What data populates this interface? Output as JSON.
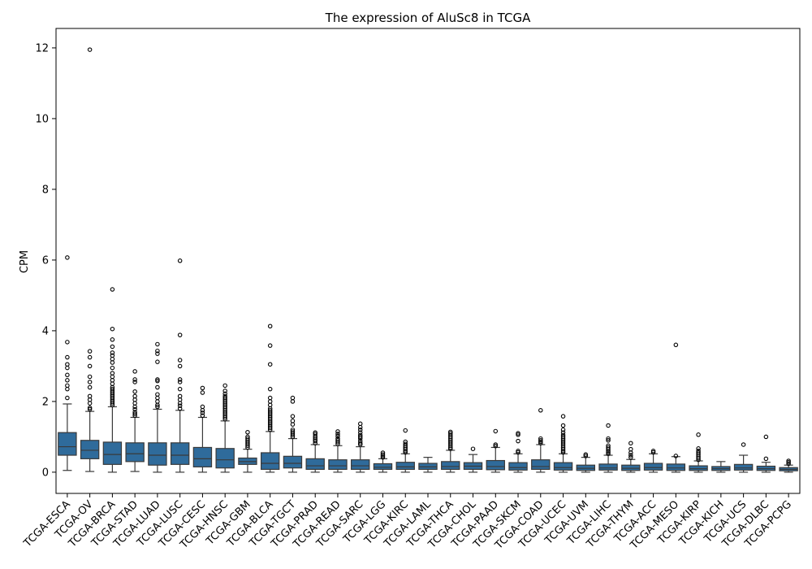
{
  "chart_data": {
    "type": "box",
    "title": "The expression of AluSc8 in TCGA",
    "xlabel": "",
    "ylabel": "CPM",
    "ylim": [
      -0.6,
      12.55
    ],
    "yticks": [
      0,
      2,
      4,
      6,
      8,
      10,
      12
    ],
    "grid": false,
    "legend": "none",
    "box_color": "#2f6b9b",
    "edge_color": "#3a3a3a",
    "categories": [
      "TCGA-ESCA",
      "TCGA-OV",
      "TCGA-BRCA",
      "TCGA-STAD",
      "TCGA-LUAD",
      "TCGA-LUSC",
      "TCGA-CESC",
      "TCGA-HNSC",
      "TCGA-GBM",
      "TCGA-BLCA",
      "TCGA-TGCT",
      "TCGA-PRAD",
      "TCGA-READ",
      "TCGA-SARC",
      "TCGA-LGG",
      "TCGA-KIRC",
      "TCGA-LAML",
      "TCGA-THCA",
      "TCGA-CHOL",
      "TCGA-PAAD",
      "TCGA-SKCM",
      "TCGA-COAD",
      "TCGA-UCEC",
      "TCGA-UVM",
      "TCGA-LIHC",
      "TCGA-THYM",
      "TCGA-ACC",
      "TCGA-MESO",
      "TCGA-KIRP",
      "TCGA-KICH",
      "TCGA-UCS",
      "TCGA-DLBC",
      "TCGA-PCPG"
    ],
    "boxes": [
      {
        "q1": 0.48,
        "median": 0.72,
        "q3": 1.12,
        "whislo": 0.05,
        "whishi": 1.93,
        "fliers": [
          2.1,
          2.35,
          2.45,
          2.6,
          2.75,
          2.95,
          3.05,
          3.25,
          3.68,
          6.07
        ]
      },
      {
        "q1": 0.38,
        "median": 0.62,
        "q3": 0.9,
        "whislo": 0.02,
        "whishi": 1.72,
        "fliers": [
          1.78,
          1.82,
          1.95,
          2.05,
          2.15,
          2.4,
          2.55,
          2.7,
          3.0,
          3.25,
          3.42,
          11.95
        ]
      },
      {
        "q1": 0.22,
        "median": 0.5,
        "q3": 0.85,
        "whislo": 0.0,
        "whishi": 1.85,
        "fliers": [
          1.9,
          1.95,
          2.0,
          2.05,
          2.1,
          2.15,
          2.2,
          2.25,
          2.3,
          2.35,
          2.4,
          2.5,
          2.6,
          2.7,
          2.8,
          2.95,
          3.1,
          3.2,
          3.3,
          3.38,
          3.55,
          3.75,
          4.05,
          5.17
        ]
      },
      {
        "q1": 0.3,
        "median": 0.52,
        "q3": 0.83,
        "whislo": 0.02,
        "whishi": 1.55,
        "fliers": [
          1.6,
          1.65,
          1.7,
          1.78,
          1.85,
          1.95,
          2.05,
          2.15,
          2.28,
          2.55,
          2.62,
          2.85
        ]
      },
      {
        "q1": 0.2,
        "median": 0.48,
        "q3": 0.83,
        "whislo": 0.0,
        "whishi": 1.78,
        "fliers": [
          1.85,
          1.9,
          2.0,
          2.1,
          2.2,
          2.4,
          2.58,
          2.62,
          3.12,
          3.35,
          3.43,
          3.62
        ]
      },
      {
        "q1": 0.22,
        "median": 0.48,
        "q3": 0.83,
        "whislo": 0.0,
        "whishi": 1.75,
        "fliers": [
          1.8,
          1.88,
          1.95,
          2.05,
          2.15,
          2.35,
          2.55,
          2.62,
          3.0,
          3.17,
          3.88,
          5.98
        ]
      },
      {
        "q1": 0.15,
        "median": 0.38,
        "q3": 0.7,
        "whislo": 0.0,
        "whishi": 1.55,
        "fliers": [
          1.6,
          1.68,
          1.75,
          1.85,
          2.25,
          2.38
        ]
      },
      {
        "q1": 0.12,
        "median": 0.35,
        "q3": 0.67,
        "whislo": 0.0,
        "whishi": 1.45,
        "fliers": [
          1.5,
          1.55,
          1.6,
          1.65,
          1.7,
          1.75,
          1.8,
          1.85,
          1.9,
          1.95,
          2.0,
          2.05,
          2.1,
          2.15,
          2.22,
          2.3,
          2.45
        ]
      },
      {
        "q1": 0.22,
        "median": 0.3,
        "q3": 0.4,
        "whislo": 0.0,
        "whishi": 0.65,
        "fliers": [
          0.7,
          0.75,
          0.8,
          0.85,
          0.9,
          0.95,
          1.0,
          1.13
        ]
      },
      {
        "q1": 0.08,
        "median": 0.25,
        "q3": 0.55,
        "whislo": 0.0,
        "whishi": 1.15,
        "fliers": [
          1.2,
          1.25,
          1.3,
          1.35,
          1.4,
          1.45,
          1.5,
          1.55,
          1.6,
          1.65,
          1.7,
          1.75,
          1.8,
          1.9,
          2.0,
          2.1,
          2.35,
          3.05,
          3.58,
          4.13
        ]
      },
      {
        "q1": 0.12,
        "median": 0.25,
        "q3": 0.45,
        "whislo": 0.0,
        "whishi": 0.95,
        "fliers": [
          1.0,
          1.05,
          1.1,
          1.15,
          1.2,
          1.35,
          1.45,
          1.58,
          2.0,
          2.1
        ]
      },
      {
        "q1": 0.08,
        "median": 0.18,
        "q3": 0.38,
        "whislo": 0.0,
        "whishi": 0.78,
        "fliers": [
          0.82,
          0.88,
          0.92,
          0.97,
          1.02,
          1.08,
          1.12
        ]
      },
      {
        "q1": 0.08,
        "median": 0.18,
        "q3": 0.35,
        "whislo": 0.0,
        "whishi": 0.75,
        "fliers": [
          0.8,
          0.85,
          0.9,
          0.95,
          1.02,
          1.08,
          1.15
        ]
      },
      {
        "q1": 0.08,
        "median": 0.18,
        "q3": 0.35,
        "whislo": 0.0,
        "whishi": 0.72,
        "fliers": [
          0.78,
          0.82,
          0.88,
          0.95,
          1.0,
          1.05,
          1.12,
          1.2,
          1.27,
          1.37
        ]
      },
      {
        "q1": 0.08,
        "median": 0.14,
        "q3": 0.24,
        "whislo": 0.0,
        "whishi": 0.38,
        "fliers": [
          0.42,
          0.46,
          0.5,
          0.55
        ]
      },
      {
        "q1": 0.08,
        "median": 0.15,
        "q3": 0.28,
        "whislo": 0.0,
        "whishi": 0.52,
        "fliers": [
          0.56,
          0.6,
          0.65,
          0.7,
          0.75,
          0.8,
          0.86,
          1.18
        ]
      },
      {
        "q1": 0.08,
        "median": 0.15,
        "q3": 0.25,
        "whislo": 0.0,
        "whishi": 0.42,
        "fliers": []
      },
      {
        "q1": 0.08,
        "median": 0.16,
        "q3": 0.3,
        "whislo": 0.0,
        "whishi": 0.62,
        "fliers": [
          0.66,
          0.7,
          0.75,
          0.8,
          0.85,
          0.9,
          0.95,
          1.0,
          1.05,
          1.1,
          1.14
        ]
      },
      {
        "q1": 0.08,
        "median": 0.17,
        "q3": 0.27,
        "whislo": 0.0,
        "whishi": 0.5,
        "fliers": [
          0.66
        ]
      },
      {
        "q1": 0.07,
        "median": 0.16,
        "q3": 0.33,
        "whislo": 0.0,
        "whishi": 0.7,
        "fliers": [
          0.74,
          0.78,
          1.16
        ]
      },
      {
        "q1": 0.06,
        "median": 0.13,
        "q3": 0.27,
        "whislo": 0.0,
        "whishi": 0.52,
        "fliers": [
          0.56,
          0.6,
          0.88,
          1.06,
          1.1
        ]
      },
      {
        "q1": 0.08,
        "median": 0.16,
        "q3": 0.35,
        "whislo": 0.0,
        "whishi": 0.78,
        "fliers": [
          0.82,
          0.86,
          0.9,
          0.95,
          1.75
        ]
      },
      {
        "q1": 0.06,
        "median": 0.13,
        "q3": 0.27,
        "whislo": 0.0,
        "whishi": 0.52,
        "fliers": [
          0.56,
          0.6,
          0.65,
          0.7,
          0.75,
          0.8,
          0.85,
          0.9,
          0.95,
          1.0,
          1.05,
          1.12,
          1.2,
          1.32,
          1.58
        ]
      },
      {
        "q1": 0.05,
        "median": 0.11,
        "q3": 0.2,
        "whislo": 0.0,
        "whishi": 0.42,
        "fliers": [
          0.46,
          0.5
        ]
      },
      {
        "q1": 0.06,
        "median": 0.12,
        "q3": 0.23,
        "whislo": 0.0,
        "whishi": 0.48,
        "fliers": [
          0.52,
          0.56,
          0.6,
          0.65,
          0.7,
          0.75,
          0.9,
          0.95,
          1.32
        ]
      },
      {
        "q1": 0.05,
        "median": 0.11,
        "q3": 0.2,
        "whislo": 0.0,
        "whishi": 0.36,
        "fliers": [
          0.42,
          0.48,
          0.55,
          0.65,
          0.82
        ]
      },
      {
        "q1": 0.06,
        "median": 0.13,
        "q3": 0.25,
        "whislo": 0.0,
        "whishi": 0.52,
        "fliers": [
          0.56,
          0.6
        ]
      },
      {
        "q1": 0.05,
        "median": 0.12,
        "q3": 0.23,
        "whislo": 0.0,
        "whishi": 0.44,
        "fliers": [
          0.46,
          3.6
        ]
      },
      {
        "q1": 0.05,
        "median": 0.1,
        "q3": 0.18,
        "whislo": 0.0,
        "whishi": 0.32,
        "fliers": [
          0.35,
          0.4,
          0.45,
          0.5,
          0.55,
          0.6,
          0.67,
          1.06
        ]
      },
      {
        "q1": 0.05,
        "median": 0.1,
        "q3": 0.16,
        "whislo": 0.0,
        "whishi": 0.3,
        "fliers": []
      },
      {
        "q1": 0.06,
        "median": 0.12,
        "q3": 0.22,
        "whislo": 0.0,
        "whishi": 0.48,
        "fliers": [
          0.78
        ]
      },
      {
        "q1": 0.05,
        "median": 0.1,
        "q3": 0.17,
        "whislo": 0.0,
        "whishi": 0.28,
        "fliers": [
          0.38,
          1.0
        ]
      },
      {
        "q1": 0.04,
        "median": 0.08,
        "q3": 0.13,
        "whislo": 0.0,
        "whishi": 0.2,
        "fliers": [
          0.24,
          0.28,
          0.32
        ]
      }
    ]
  }
}
